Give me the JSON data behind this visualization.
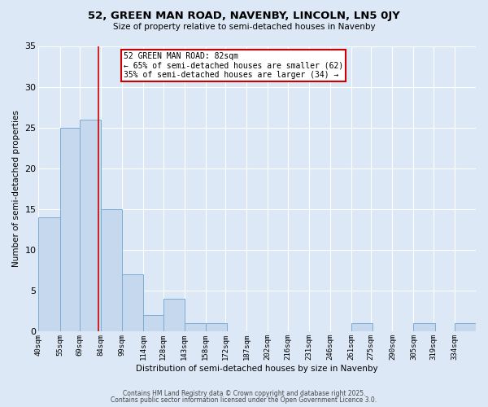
{
  "title1": "52, GREEN MAN ROAD, NAVENBY, LINCOLN, LN5 0JY",
  "title2": "Size of property relative to semi-detached houses in Navenby",
  "xlabel": "Distribution of semi-detached houses by size in Navenby",
  "ylabel": "Number of semi-detached properties",
  "bar_labels": [
    "40sqm",
    "55sqm",
    "69sqm",
    "84sqm",
    "99sqm",
    "114sqm",
    "128sqm",
    "143sqm",
    "158sqm",
    "172sqm",
    "187sqm",
    "202sqm",
    "216sqm",
    "231sqm",
    "246sqm",
    "261sqm",
    "275sqm",
    "290sqm",
    "305sqm",
    "319sqm",
    "334sqm"
  ],
  "bar_values": [
    14,
    25,
    26,
    15,
    7,
    2,
    4,
    1,
    1,
    0,
    0,
    0,
    0,
    0,
    0,
    1,
    0,
    0,
    1,
    0,
    1
  ],
  "bar_color": "#c5d8ee",
  "bar_edge_color": "#7aadd4",
  "bg_color": "#dce8f5",
  "grid_color": "#ffffff",
  "vline_x": 82,
  "vline_color": "#cc0000",
  "annotation_title": "52 GREEN MAN ROAD: 82sqm",
  "annotation_line2": "← 65% of semi-detached houses are smaller (62)",
  "annotation_line3": "35% of semi-detached houses are larger (34) →",
  "annotation_box_color": "#cc0000",
  "ylim": [
    0,
    35
  ],
  "yticks": [
    0,
    5,
    10,
    15,
    20,
    25,
    30,
    35
  ],
  "bin_starts": [
    40,
    55,
    69,
    84,
    99,
    114,
    128,
    143,
    158,
    172,
    187,
    202,
    216,
    231,
    246,
    261,
    275,
    290,
    305,
    319,
    334
  ],
  "bin_width": 15,
  "footnote1": "Contains HM Land Registry data © Crown copyright and database right 2025.",
  "footnote2": "Contains public sector information licensed under the Open Government Licence 3.0."
}
